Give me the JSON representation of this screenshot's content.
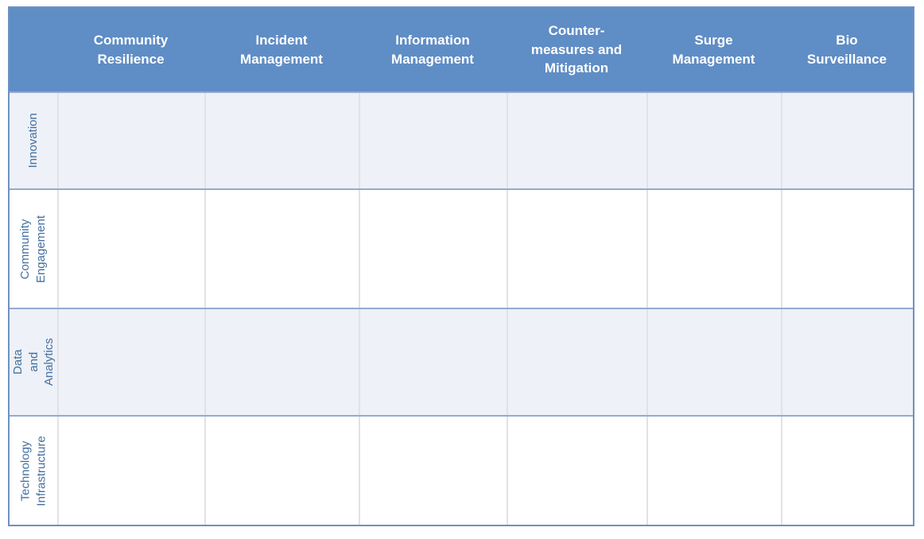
{
  "matrix": {
    "corner": "",
    "columns": [
      {
        "label": "Community\nResilience"
      },
      {
        "label": "Incident\nManagement"
      },
      {
        "label": "Information\nManagement"
      },
      {
        "label": "Counter-\nmeasures and\nMitigation"
      },
      {
        "label": "Surge\nManagement"
      },
      {
        "label": "Bio\nSurveillance"
      }
    ],
    "rows": [
      {
        "label": "Innovation",
        "cells": [
          "",
          "",
          "",
          "",
          "",
          ""
        ]
      },
      {
        "label": "Community\nEngagement",
        "cells": [
          "",
          "",
          "",
          "",
          "",
          ""
        ]
      },
      {
        "label": "Data and\nAnalytics",
        "cells": [
          "",
          "",
          "",
          "",
          "",
          ""
        ]
      },
      {
        "label": "Technology\nInfrastructure",
        "cells": [
          "",
          "",
          "",
          "",
          "",
          ""
        ]
      }
    ]
  },
  "colors": {
    "header_bg": "#5F8DC5",
    "header_text": "#FFFFFF",
    "row_label_text": "#44709F",
    "alt_row_bg": "#EEF1F7",
    "row_bg": "#FFFFFF",
    "row_divider": "#94ABD1",
    "column_divider": "#E2E2E4",
    "outer_border": "#7090C2"
  }
}
